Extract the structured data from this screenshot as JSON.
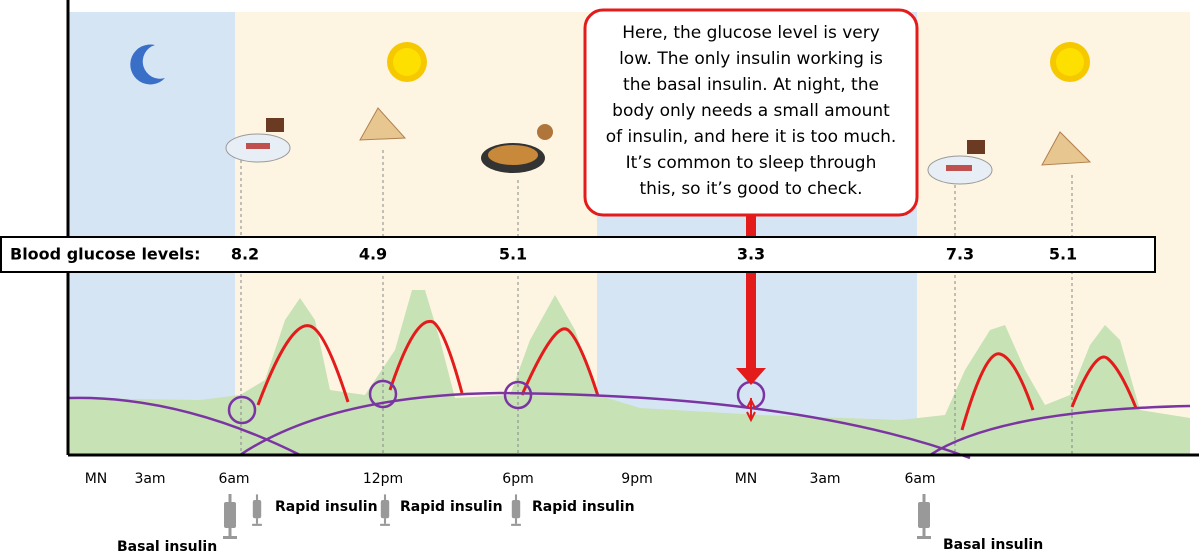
{
  "banner": {
    "label": "Blood glucose levels:",
    "levels": [
      8.2,
      4.9,
      5.1,
      3.3,
      7.3,
      5.1
    ]
  },
  "callout": {
    "lines": [
      "Here, the glucose level is very",
      "low. The only insulin working is",
      "the basal insulin. At night, the",
      "body only needs a small amount",
      "of insulin, and here it is too much.",
      "It’s common to sleep through",
      "this, so it’s good to check."
    ]
  },
  "time_axis": [
    "MN",
    "3am",
    "6am",
    "12pm",
    "6pm",
    "9pm",
    "MN",
    "3am",
    "6am"
  ],
  "insulin": {
    "rapid": [
      "Rapid insulin",
      "Rapid insulin",
      "Rapid insulin"
    ],
    "basal": [
      "Basal insulin",
      "Basal insulin"
    ]
  }
}
